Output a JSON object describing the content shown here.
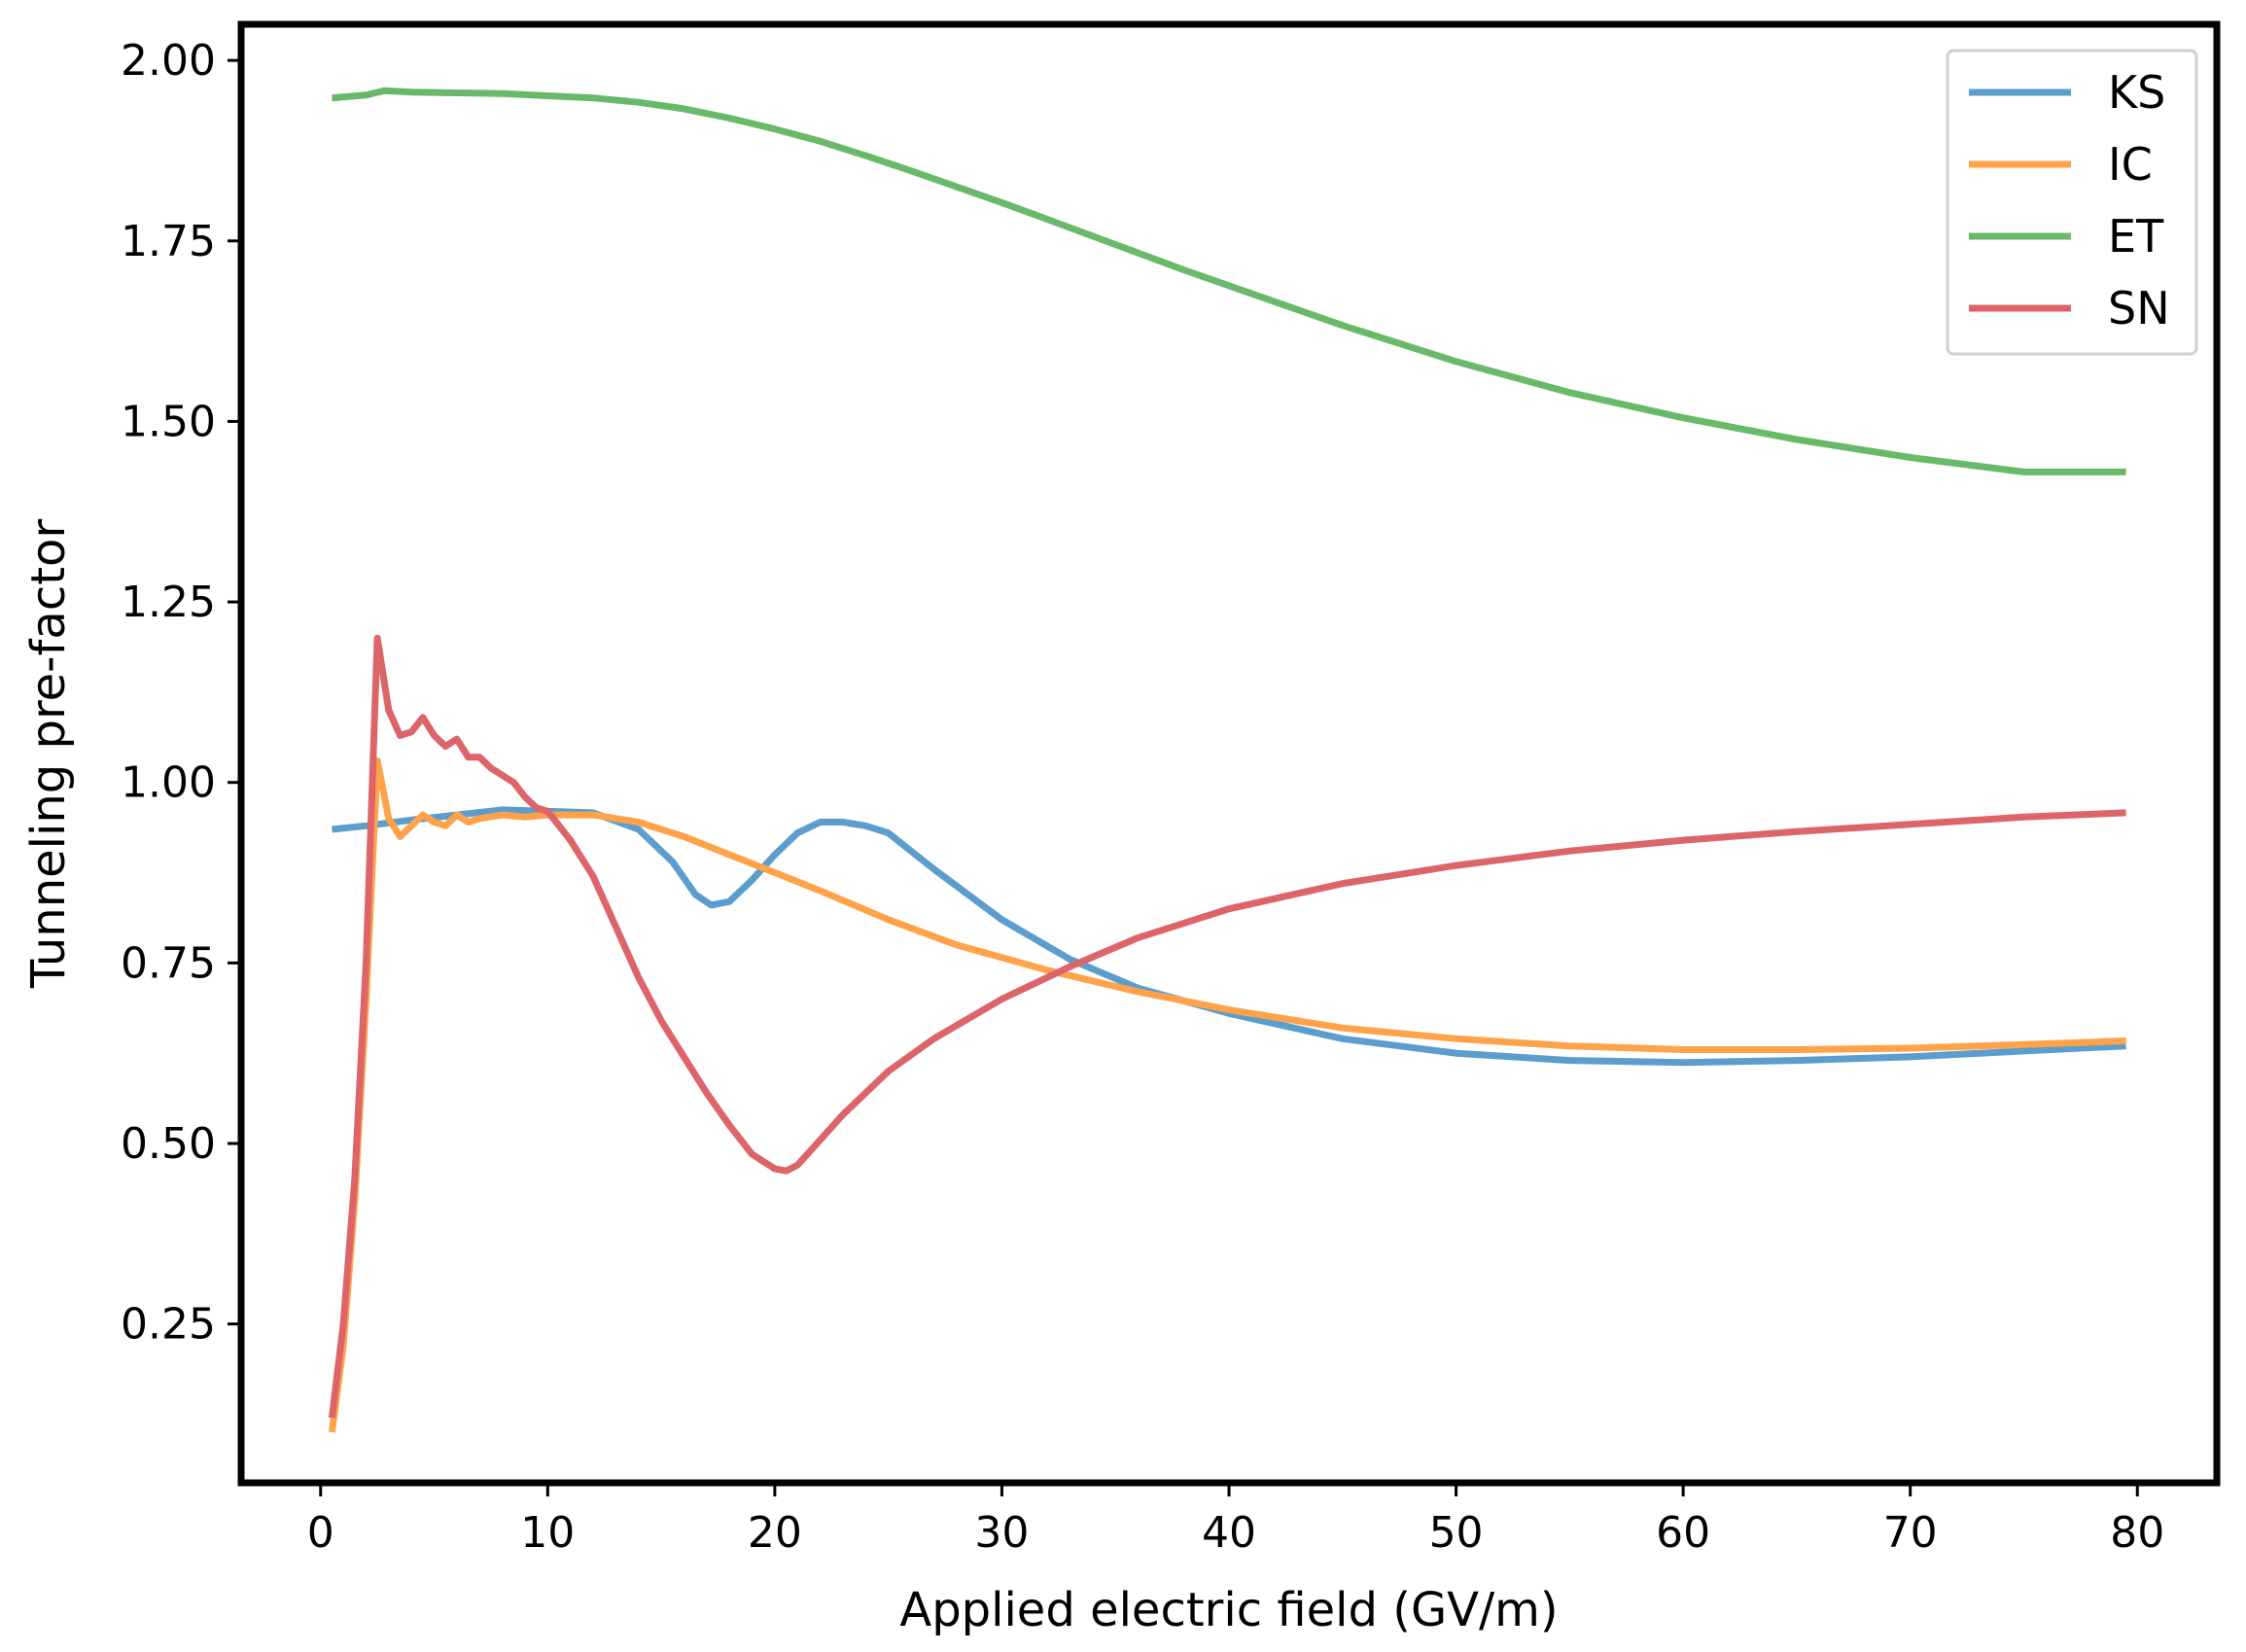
{
  "chart_data": {
    "type": "line",
    "title": "",
    "xlabel": "Applied electric field (GV/m)",
    "ylabel": "Tunneling pre-factor",
    "xlim": [
      -3.5,
      83.5
    ],
    "ylim": [
      0.03,
      2.05
    ],
    "xticks": [
      0,
      10,
      20,
      30,
      40,
      50,
      60,
      70,
      80
    ],
    "xtick_labels": [
      "0",
      "10",
      "20",
      "30",
      "40",
      "50",
      "60",
      "70",
      "80"
    ],
    "yticks": [
      0.25,
      0.5,
      0.75,
      1.0,
      1.25,
      1.5,
      1.75,
      2.0
    ],
    "ytick_labels": [
      "0.25",
      "0.50",
      "0.75",
      "1.00",
      "1.25",
      "1.50",
      "1.75",
      "2.00"
    ],
    "grid": false,
    "legend_position": "top-right",
    "series": [
      {
        "name": "KS",
        "color": "#5b9dcc",
        "x": [
          0.5,
          2,
          4,
          6,
          8,
          10,
          12,
          14,
          15.5,
          16.5,
          17.2,
          18,
          19,
          20,
          21,
          22,
          23,
          24,
          25,
          27,
          30,
          33,
          36,
          40,
          45,
          50,
          55,
          60,
          65,
          70,
          75,
          79.5
        ],
        "y": [
          0.935,
          0.94,
          0.948,
          0.955,
          0.962,
          0.96,
          0.958,
          0.935,
          0.89,
          0.845,
          0.83,
          0.835,
          0.865,
          0.9,
          0.93,
          0.945,
          0.945,
          0.94,
          0.93,
          0.88,
          0.81,
          0.755,
          0.715,
          0.68,
          0.645,
          0.625,
          0.615,
          0.612,
          0.615,
          0.62,
          0.628,
          0.635
        ]
      },
      {
        "name": "IC",
        "color": "#ffa24a",
        "x": [
          0.5,
          1,
          1.5,
          2,
          2.5,
          3,
          3.5,
          4,
          4.5,
          5,
          5.5,
          6,
          6.5,
          7,
          8,
          9,
          10,
          12,
          14,
          16,
          18,
          20,
          22,
          25,
          28,
          32,
          36,
          40,
          45,
          50,
          55,
          60,
          65,
          70,
          75,
          79.5
        ],
        "y": [
          0.1,
          0.22,
          0.42,
          0.7,
          1.03,
          0.95,
          0.925,
          0.94,
          0.955,
          0.945,
          0.94,
          0.955,
          0.945,
          0.95,
          0.955,
          0.952,
          0.955,
          0.955,
          0.945,
          0.925,
          0.9,
          0.875,
          0.85,
          0.81,
          0.775,
          0.74,
          0.71,
          0.685,
          0.66,
          0.645,
          0.635,
          0.63,
          0.63,
          0.632,
          0.637,
          0.642
        ]
      },
      {
        "name": "ET",
        "color": "#6ab96a",
        "x": [
          0.5,
          2,
          2.8,
          4,
          6,
          8,
          10,
          12,
          14,
          16,
          18,
          20,
          22,
          24,
          26,
          28,
          30,
          32,
          35,
          38,
          40,
          45,
          50,
          55,
          60,
          65,
          70,
          75,
          79.5
        ],
        "y": [
          1.948,
          1.952,
          1.958,
          1.956,
          1.955,
          1.954,
          1.951,
          1.948,
          1.942,
          1.933,
          1.92,
          1.905,
          1.888,
          1.868,
          1.847,
          1.825,
          1.803,
          1.78,
          1.745,
          1.71,
          1.688,
          1.633,
          1.583,
          1.54,
          1.505,
          1.475,
          1.45,
          1.43,
          1.43
        ]
      },
      {
        "name": "SN",
        "color": "#dd6468",
        "x": [
          0.5,
          1,
          1.5,
          2,
          2.5,
          3,
          3.5,
          4,
          4.5,
          5,
          5.5,
          6,
          6.5,
          7,
          7.5,
          8,
          8.5,
          9,
          9.5,
          10,
          11,
          12,
          13,
          14,
          15,
          16,
          17,
          18,
          19,
          20,
          20.5,
          21,
          22,
          23,
          24,
          25,
          27,
          30,
          33,
          36,
          40,
          45,
          50,
          55,
          60,
          65,
          70,
          75,
          79.5
        ],
        "y": [
          0.12,
          0.25,
          0.45,
          0.75,
          1.2,
          1.1,
          1.065,
          1.07,
          1.09,
          1.065,
          1.05,
          1.06,
          1.035,
          1.035,
          1.02,
          1.01,
          1.0,
          0.98,
          0.965,
          0.96,
          0.92,
          0.87,
          0.8,
          0.73,
          0.67,
          0.62,
          0.57,
          0.525,
          0.485,
          0.465,
          0.462,
          0.47,
          0.505,
          0.54,
          0.57,
          0.6,
          0.645,
          0.7,
          0.745,
          0.785,
          0.825,
          0.86,
          0.885,
          0.905,
          0.92,
          0.932,
          0.942,
          0.952,
          0.958
        ]
      }
    ]
  }
}
